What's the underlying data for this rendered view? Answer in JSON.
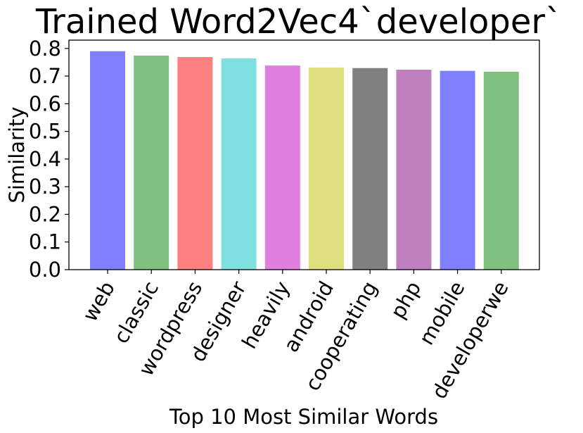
{
  "chart_data": {
    "type": "bar",
    "title": "Trained Word2Vec4`developer`",
    "xlabel": "Top 10 Most Similar Words",
    "ylabel": "Similarity",
    "categories": [
      "web",
      "classic",
      "wordpress",
      "designer",
      "heavily",
      "android",
      "cooperating",
      "php",
      "mobile",
      "developerwe"
    ],
    "values": [
      0.79,
      0.774,
      0.769,
      0.764,
      0.738,
      0.731,
      0.729,
      0.723,
      0.719,
      0.716
    ],
    "ylim": [
      0,
      0.83
    ],
    "yticks": [
      "0.0",
      "0.1",
      "0.2",
      "0.3",
      "0.4",
      "0.5",
      "0.6",
      "0.7",
      "0.8"
    ],
    "colors": [
      "#8080ff",
      "#80c080",
      "#ff8080",
      "#80dfdf",
      "#df80df",
      "#dfdf80",
      "#808080",
      "#bf80bf",
      "#8080ff",
      "#80c080"
    ],
    "grid": false,
    "legend": "none"
  }
}
